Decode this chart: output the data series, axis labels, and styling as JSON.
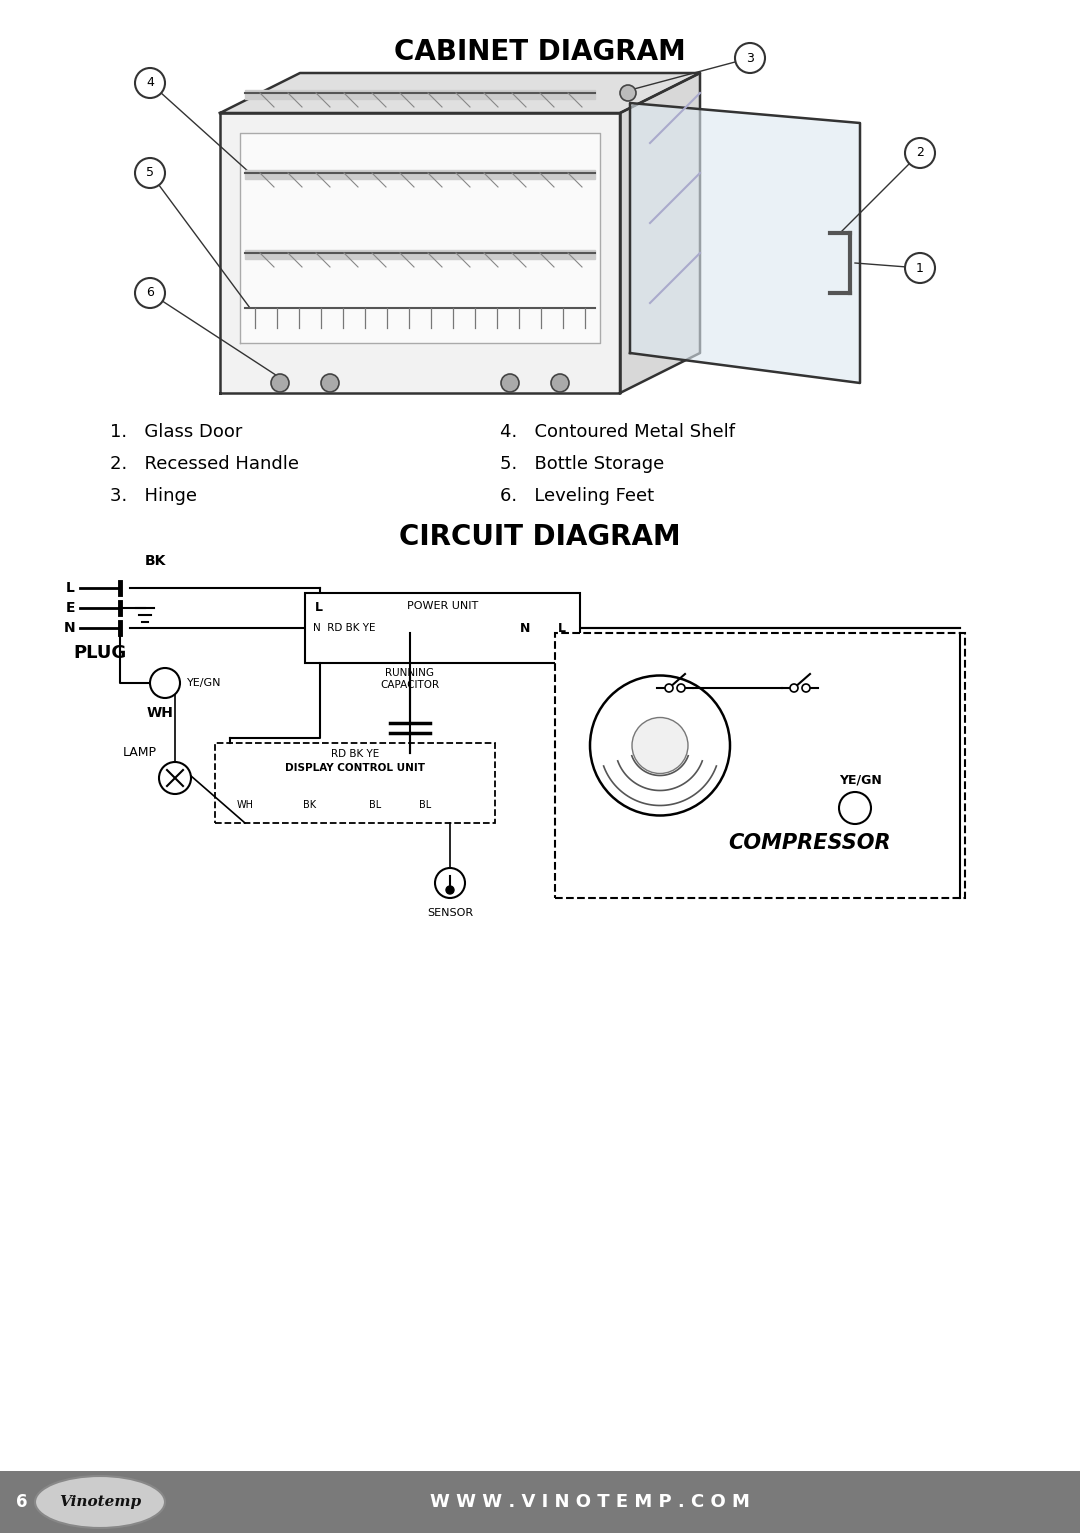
{
  "title1": "CABINET DIAGRAM",
  "title2": "CIRCUIT DIAGRAM",
  "bg_color": "#ffffff",
  "footer_bg": "#808080",
  "footer_text": "W W W . V I N O T E M P . C O M",
  "footer_page": "6",
  "parts_left": [
    "1.   Glass Door",
    "2.   Recessed Handle",
    "3.   Hinge"
  ],
  "parts_right": [
    "4.   Contoured Metal Shelf",
    "5.   Bottle Storage",
    "6.   Leveling Feet"
  ],
  "title_fontsize": 20,
  "body_fontsize": 13
}
